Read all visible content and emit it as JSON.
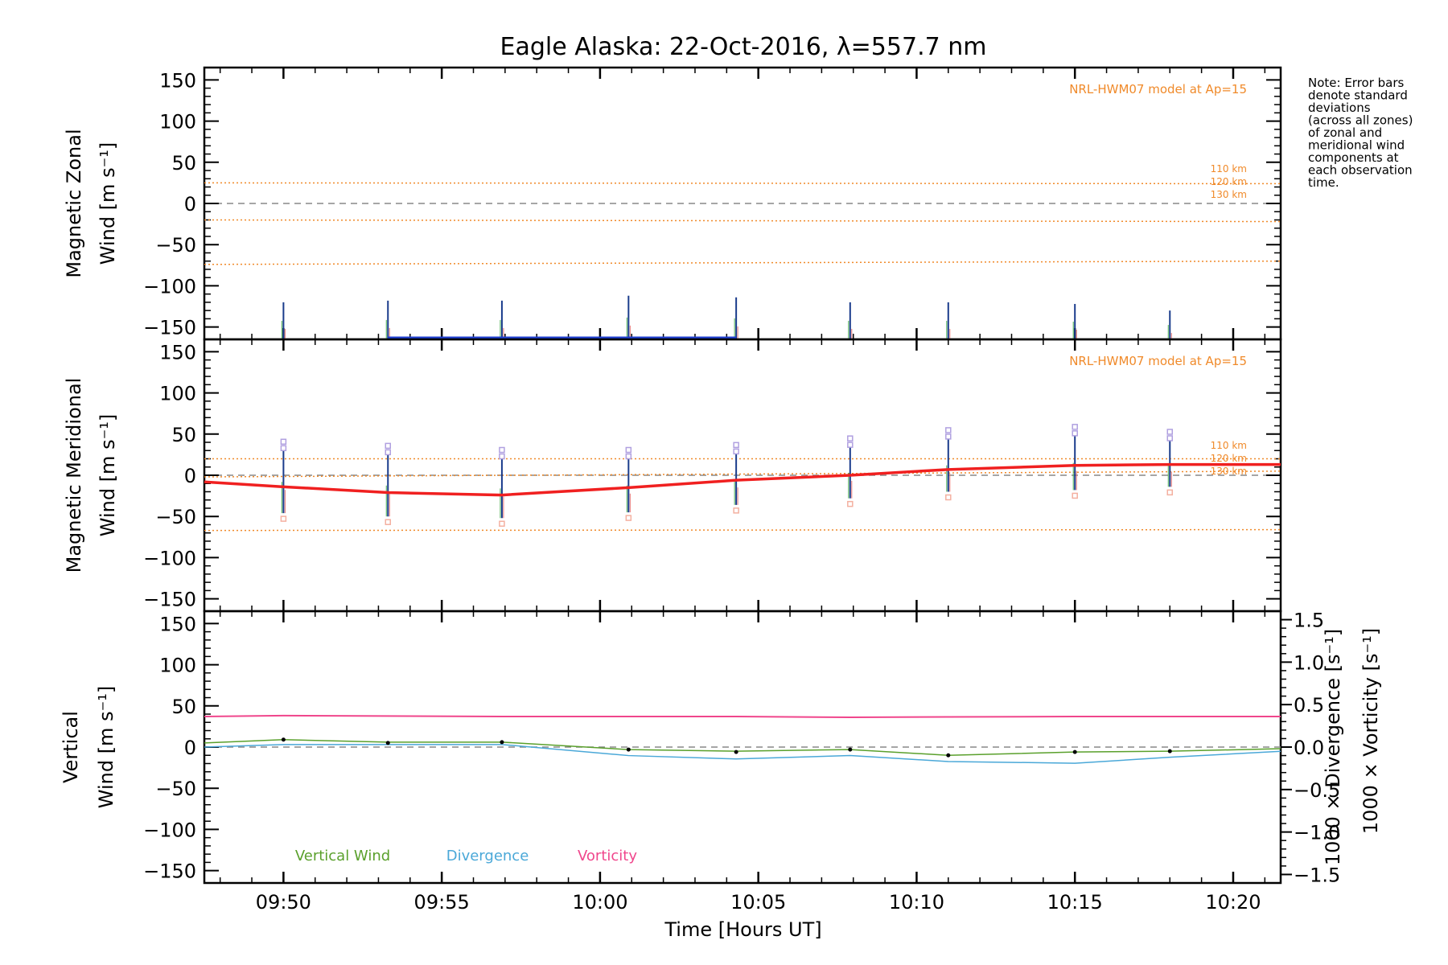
{
  "chart_data": [
    {
      "type": "line",
      "title": "Eagle Alaska: 22-Oct-2016, λ=557.7 nm",
      "ylabel_line1": "Magnetic Zonal",
      "ylabel_line2": "Wind [m s⁻¹]",
      "ylim": [
        -165,
        165
      ],
      "yticks": [
        150,
        100,
        50,
        0,
        -50,
        -100,
        -150
      ],
      "model_label": "NRL-HWM07 model at Ap=15",
      "altitude_labels": [
        "110 km",
        "120 km",
        "130 km"
      ],
      "note": [
        "Note: Error bars",
        "denote standard",
        "deviations",
        "(across all zones)",
        "of zonal and",
        "meridional wind",
        "components at",
        "each observation",
        "time."
      ],
      "model_series": [
        {
          "name": "110 km",
          "values": [
            25,
            24
          ]
        },
        {
          "name": "120 km",
          "values": [
            -20,
            -22
          ]
        },
        {
          "name": "130 km",
          "values": [
            -74,
            -70
          ]
        }
      ],
      "obs_times": [
        "09:50",
        "09:53.3",
        "09:56.9",
        "10:00.9",
        "10:04.3",
        "10:07.9",
        "10:11",
        "10:15",
        "10:18"
      ],
      "series": [
        {
          "name": "zonal",
          "x": [
            "09:53.3",
            "09:56.9",
            "10:00.9",
            "10:04.3"
          ],
          "values": [
            -168,
            -168,
            -163,
            -167
          ]
        }
      ],
      "errorbars": [
        {
          "x": "09:50",
          "low": -170,
          "high": -120
        },
        {
          "x": "09:53.3",
          "low": -170,
          "high": -118
        },
        {
          "x": "09:56.9",
          "low": -170,
          "high": -118
        },
        {
          "x": "10:00.9",
          "low": -170,
          "high": -112
        },
        {
          "x": "10:04.3",
          "low": -170,
          "high": -114
        },
        {
          "x": "10:07.9",
          "low": -170,
          "high": -120
        },
        {
          "x": "10:11",
          "low": -170,
          "high": -120
        },
        {
          "x": "10:15",
          "low": -170,
          "high": -122
        },
        {
          "x": "10:18",
          "low": -170,
          "high": -130
        }
      ]
    },
    {
      "type": "line",
      "ylabel_line1": "Magnetic Meridional",
      "ylabel_line2": "Wind [m s⁻¹]",
      "ylim": [
        -165,
        165
      ],
      "yticks": [
        150,
        100,
        50,
        0,
        -50,
        -100,
        -150
      ],
      "model_label": "NRL-HWM07 model at Ap=15",
      "altitude_labels": [
        "110 km",
        "120 km",
        "130 km"
      ],
      "model_series": [
        {
          "name": "110 km",
          "values": [
            20,
            20
          ]
        },
        {
          "name": "120 km",
          "values": [
            -2,
            5
          ]
        },
        {
          "name": "130 km",
          "values": [
            -67,
            -66
          ]
        }
      ],
      "series": [
        {
          "name": "meridional",
          "x": [
            "09:47.5",
            "09:50",
            "09:53.3",
            "09:56.9",
            "10:00.9",
            "10:04.3",
            "10:07.9",
            "10:11",
            "10:15",
            "10:18",
            "10:21.5"
          ],
          "values": [
            -8,
            -14,
            -21,
            -24,
            -15,
            -6,
            0,
            7,
            12,
            13,
            13
          ]
        }
      ],
      "errorbars": [
        {
          "x": "09:50",
          "low": -46,
          "high": 30
        },
        {
          "x": "09:53.3",
          "low": -50,
          "high": 25
        },
        {
          "x": "09:56.9",
          "low": -52,
          "high": 20
        },
        {
          "x": "10:00.9",
          "low": -45,
          "high": 20
        },
        {
          "x": "10:04.3",
          "low": -36,
          "high": 26
        },
        {
          "x": "10:07.9",
          "low": -28,
          "high": 34
        },
        {
          "x": "10:11",
          "low": -20,
          "high": 44
        },
        {
          "x": "10:15",
          "low": -18,
          "high": 48
        },
        {
          "x": "10:18",
          "low": -14,
          "high": 42
        }
      ]
    },
    {
      "type": "line",
      "ylabel_line1": "Vertical",
      "ylabel_line2": "Wind [m s⁻¹]",
      "ylim": [
        -165,
        165
      ],
      "yticks": [
        150,
        100,
        50,
        0,
        -50,
        -100,
        -150
      ],
      "y2label_div": "1000 × Divergence [s⁻¹]",
      "y2label_vort": "1000 × Vorticity [s⁻¹]",
      "y2lim": [
        -1.6,
        1.6
      ],
      "y2ticks": [
        1.5,
        1.0,
        0.5,
        0.0,
        -0.5,
        -1.0,
        -1.5
      ],
      "y2tick_labels": [
        "1.5",
        "1.0",
        "0.5",
        "0.0",
        "−0.5",
        "−1.0",
        "−1.5"
      ],
      "legend": [
        {
          "name": "Vertical Wind",
          "color": "#5aa02c"
        },
        {
          "name": "Divergence",
          "color": "#4aa8d8"
        },
        {
          "name": "Vorticity",
          "color": "#f0468c"
        }
      ],
      "series": [
        {
          "name": "Vertical Wind",
          "x": [
            "09:47.5",
            "09:50",
            "09:53.3",
            "09:56.9",
            "10:00.9",
            "10:04.3",
            "10:07.9",
            "10:11",
            "10:15",
            "10:18",
            "10:21.5"
          ],
          "values": [
            5,
            9,
            6,
            6,
            -3,
            -5,
            -3,
            -10,
            -6,
            -5,
            -2
          ]
        },
        {
          "name": "Divergence",
          "x": [
            "09:47.5",
            "09:50",
            "09:53.3",
            "09:56.9",
            "10:00.9",
            "10:04.3",
            "10:07.9",
            "10:11",
            "10:15",
            "10:18",
            "10:21.5"
          ],
          "values": [
            0.0,
            0.03,
            0.03,
            0.03,
            -0.1,
            -0.14,
            -0.1,
            -0.17,
            -0.19,
            -0.12,
            -0.05
          ]
        },
        {
          "name": "Vorticity",
          "x": [
            "09:47.5",
            "09:50",
            "09:56.9",
            "10:04.3",
            "10:07.9",
            "10:11",
            "10:15",
            "10:21.5"
          ],
          "values": [
            0.36,
            0.37,
            0.36,
            0.36,
            0.35,
            0.355,
            0.36,
            0.36
          ]
        }
      ],
      "obs_points": [
        {
          "x": "09:50",
          "y": 9
        },
        {
          "x": "09:53.3",
          "y": 5
        },
        {
          "x": "09:56.9",
          "y": 6
        },
        {
          "x": "10:00.9",
          "y": -3
        },
        {
          "x": "10:04.3",
          "y": -6
        },
        {
          "x": "10:07.9",
          "y": -3
        },
        {
          "x": "10:11",
          "y": -10
        },
        {
          "x": "10:15",
          "y": -6
        },
        {
          "x": "10:18",
          "y": -5
        }
      ]
    }
  ],
  "xaxis": {
    "label": "Time [Hours UT]",
    "xlim": [
      "09:47.5",
      "10:21.5"
    ],
    "ticks": [
      "09:50",
      "09:55",
      "10:00",
      "10:05",
      "10:10",
      "10:15",
      "10:20"
    ]
  }
}
